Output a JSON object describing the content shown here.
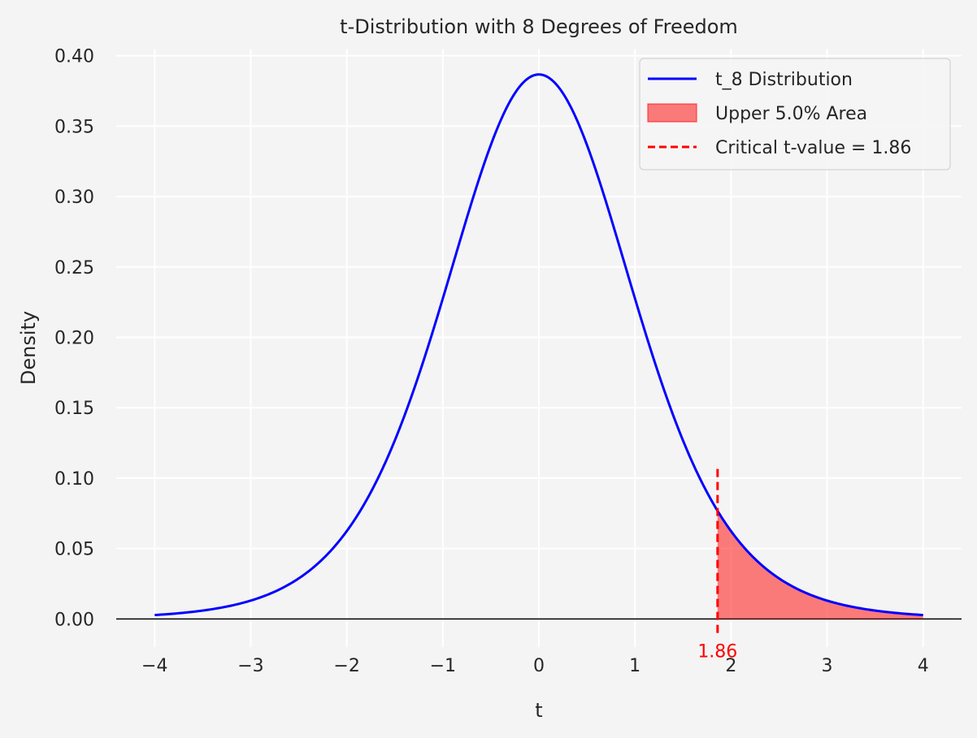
{
  "chart_data": {
    "type": "line",
    "title": "t-Distribution with 8 Degrees of Freedom",
    "xlabel": "t",
    "ylabel": "Density",
    "xlim": [
      -4.4,
      4.4
    ],
    "ylim": [
      -0.02,
      0.405
    ],
    "x_ticks": [
      -4,
      -3,
      -2,
      -1,
      0,
      1,
      2,
      3,
      4
    ],
    "x_tick_labels": [
      "−4",
      "−3",
      "−2",
      "−1",
      "0",
      "1",
      "2",
      "3",
      "4"
    ],
    "y_ticks": [
      0.0,
      0.05,
      0.1,
      0.15,
      0.2,
      0.25,
      0.3,
      0.35,
      0.4
    ],
    "y_tick_labels": [
      "0.00",
      "0.05",
      "0.10",
      "0.15",
      "0.20",
      "0.25",
      "0.30",
      "0.35",
      "0.40"
    ],
    "grid": true,
    "legend_position": "top-right",
    "series": [
      {
        "name": "t_8 Distribution",
        "color": "#0000ff",
        "x": [
          -4.0,
          -3.5,
          -3.0,
          -2.5,
          -2.0,
          -1.75,
          -1.5,
          -1.25,
          -1.0,
          -0.75,
          -0.5,
          -0.25,
          0.0,
          0.25,
          0.5,
          0.75,
          1.0,
          1.25,
          1.5,
          1.75,
          1.86,
          2.0,
          2.5,
          3.0,
          3.5,
          4.0
        ],
        "y": [
          0.0034,
          0.0068,
          0.0139,
          0.0297,
          0.0628,
          0.0885,
          0.1214,
          0.1605,
          0.2042,
          0.2618,
          0.3162,
          0.3637,
          0.3867,
          0.3637,
          0.3162,
          0.2618,
          0.2042,
          0.1605,
          0.1214,
          0.0885,
          0.0759,
          0.0628,
          0.0297,
          0.0139,
          0.0068,
          0.0034
        ]
      }
    ],
    "shaded_area": {
      "name": "Upper 5.0% Area",
      "color": "#ff0000",
      "from": 1.86,
      "to": 4.0
    },
    "critical_line": {
      "name": "Critical t-value = 1.86",
      "value": 1.86,
      "label": "1.86",
      "color": "#ff0000",
      "y_range": [
        -0.01,
        0.108
      ]
    },
    "baseline_y": 0.0
  }
}
